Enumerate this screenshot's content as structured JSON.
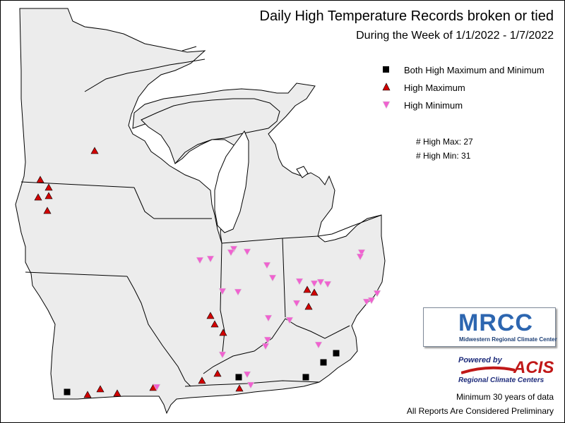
{
  "title": "Daily High Temperature Records broken or tied",
  "subtitle": "During the Week of 1/1/2022 - 1/7/2022",
  "legend": [
    {
      "symbol": "black-square-icon",
      "label": "Both High Maximum and Minimum",
      "color": "#000000"
    },
    {
      "symbol": "red-triangle-up-icon",
      "label": "High Maximum",
      "color": "#d20000"
    },
    {
      "symbol": "pink-triangle-down-icon",
      "label": "High Minimum",
      "color": "#f062d0"
    }
  ],
  "counts": {
    "high_max_label": "# High Max:",
    "high_max_value": "27",
    "high_min_label": "# High Min:",
    "high_min_value": "31"
  },
  "logo": {
    "name": "MRCC",
    "subtitle": "Midwestern Regional Climate Center",
    "colors": {
      "primary": "#2d66b0",
      "dark": "#1d3f75"
    }
  },
  "acis": {
    "powered_by": "Powered by",
    "name": "ACIS",
    "subtitle": "Regional Climate Centers"
  },
  "footer": {
    "line1": "Minimum 30 years of data",
    "line2": "All Reports Are Considered Preliminary"
  },
  "colors": {
    "land": "#ececec",
    "state_border": "#000000",
    "high_max": "#d20000",
    "high_min": "#f062d0",
    "both": "#000000"
  }
}
